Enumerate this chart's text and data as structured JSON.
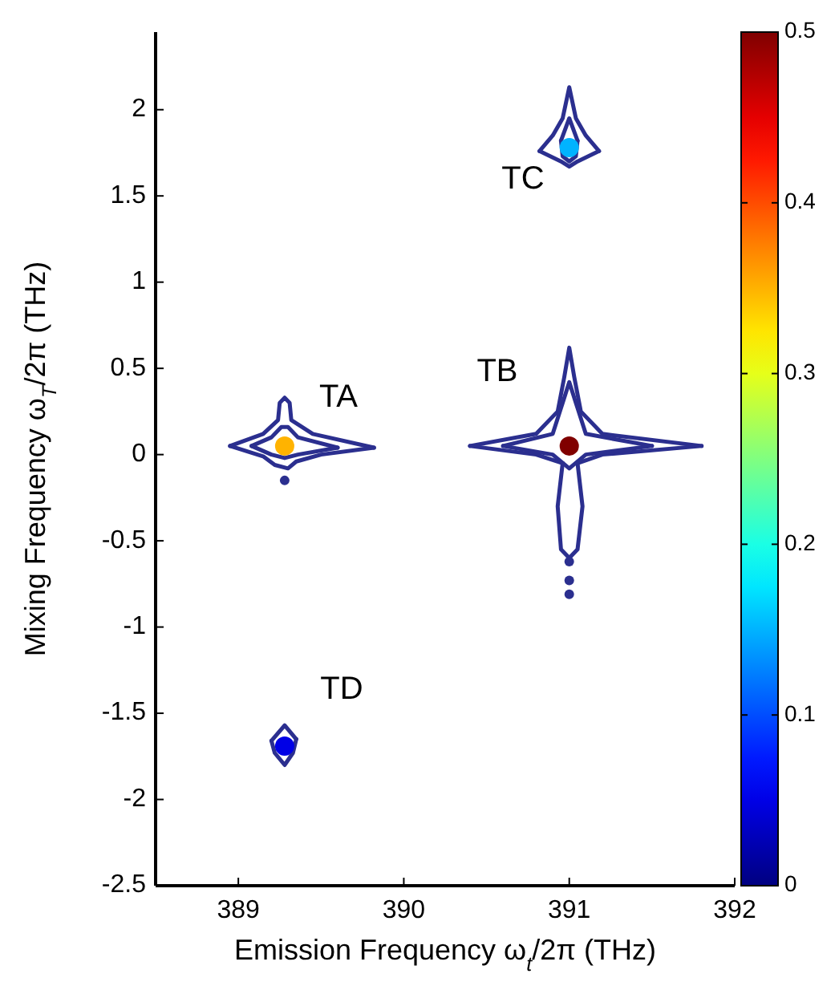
{
  "chart_data": {
    "type": "line",
    "xlabel": "Emission Frequency ω$_{t}$/2π (THz)",
    "ylabel": "Mixing Frequency ω$_{T}$/2π (THz)",
    "xlim": [
      388.5,
      392
    ],
    "xticks": [
      389,
      390,
      391,
      392
    ],
    "ylim": [
      -2.5,
      2.45
    ],
    "yticks": [
      -2.5,
      -2,
      -1.5,
      -1,
      -0.5,
      0,
      0.5,
      1,
      1.5,
      2
    ],
    "clim": [
      0,
      0.5
    ],
    "cticks": [
      0,
      0.1,
      0.2,
      0.3,
      0.4,
      0.5
    ],
    "grid": false,
    "series": [
      {
        "color": "#2b2f8f",
        "x": [
          388.95,
          389.15,
          389.24,
          389.25,
          389.28,
          389.31,
          389.32,
          389.45,
          389.82
        ],
        "values": [
          0.05,
          0.12,
          0.2,
          0.3,
          0.33,
          0.3,
          0.2,
          0.12,
          0.04
        ]
      },
      {
        "color": "#2b2f8f",
        "x": [
          388.95,
          389.15,
          389.22,
          389.3,
          389.35,
          389.5,
          389.82
        ],
        "values": [
          0.05,
          -0.01,
          -0.06,
          -0.08,
          -0.04,
          0.0,
          0.04
        ]
      },
      {
        "color": "#2b2f8f",
        "x": [
          389.08,
          389.2,
          389.26,
          389.3,
          389.36,
          389.6
        ],
        "values": [
          0.05,
          0.1,
          0.16,
          0.16,
          0.1,
          0.04
        ]
      },
      {
        "color": "#2b2f8f",
        "x": [
          389.08,
          389.2,
          389.28,
          389.36,
          389.6
        ],
        "values": [
          0.05,
          0.0,
          -0.02,
          0.0,
          0.04
        ]
      },
      {
        "color": "#2b2f8f",
        "x": [
          390.4,
          390.8,
          390.93,
          390.97,
          391.0,
          391.03,
          391.07,
          391.2,
          391.8
        ],
        "values": [
          0.05,
          0.12,
          0.25,
          0.45,
          0.62,
          0.45,
          0.25,
          0.12,
          0.05
        ]
      },
      {
        "color": "#2b2f8f",
        "x": [
          390.4,
          390.8,
          390.96
        ],
        "values": [
          0.05,
          0.0,
          -0.05
        ]
      },
      {
        "color": "#2b2f8f",
        "x": [
          390.96,
          390.93,
          390.95,
          391.0,
          391.05,
          391.08,
          391.05
        ],
        "values": [
          -0.05,
          -0.3,
          -0.55,
          -0.6,
          -0.55,
          -0.3,
          -0.05
        ]
      },
      {
        "color": "#2b2f8f",
        "x": [
          391.05,
          391.2,
          391.8
        ],
        "values": [
          -0.05,
          0.0,
          0.05
        ]
      },
      {
        "color": "#2b2f8f",
        "x": [
          390.6,
          390.9,
          390.96,
          391.0,
          391.04,
          391.1,
          391.5
        ],
        "values": [
          0.05,
          0.12,
          0.3,
          0.42,
          0.3,
          0.12,
          0.05
        ]
      },
      {
        "color": "#2b2f8f",
        "x": [
          390.6,
          390.9,
          391.0,
          391.1,
          391.5
        ],
        "values": [
          0.05,
          0.0,
          -0.08,
          0.0,
          0.05
        ]
      },
      {
        "color": "#2b2f8f",
        "x": [
          390.82,
          390.9,
          390.96,
          391.0,
          391.04,
          391.1,
          391.18
        ],
        "values": [
          1.76,
          1.85,
          1.95,
          2.13,
          1.95,
          1.85,
          1.76
        ]
      },
      {
        "color": "#2b2f8f",
        "x": [
          390.82,
          390.95,
          391.0,
          391.05,
          391.18
        ],
        "values": [
          1.76,
          1.7,
          1.67,
          1.7,
          1.76
        ]
      },
      {
        "color": "#2b2f8f",
        "x": [
          390.95,
          391.0,
          391.05
        ],
        "values": [
          1.82,
          1.95,
          1.82
        ]
      },
      {
        "color": "#2b2f8f",
        "x": [
          390.95,
          390.96,
          391.0,
          391.04,
          391.05
        ],
        "values": [
          1.82,
          1.73,
          1.7,
          1.73,
          1.82
        ]
      },
      {
        "color": "#2b2f8f",
        "x": [
          389.2,
          389.28,
          389.35
        ],
        "values": [
          -1.66,
          -1.57,
          -1.65
        ]
      },
      {
        "color": "#2b2f8f",
        "x": [
          389.2,
          389.22,
          389.28,
          389.33,
          389.35
        ],
        "values": [
          -1.66,
          -1.73,
          -1.8,
          -1.73,
          -1.65
        ]
      },
      {
        "type": "scatter",
        "marker": "circle",
        "x": [
          389.28,
          391.0,
          391.0,
          389.28
        ],
        "values": [
          0.05,
          0.05,
          1.78,
          -1.69
        ],
        "colors": [
          "#ffb300",
          "#800000",
          "#00b3ff",
          "#0000e6"
        ]
      },
      {
        "type": "scatter",
        "marker": "circle",
        "color": "#2b2f8f",
        "x": [
          389.28,
          391.0,
          391.0,
          391.0
        ],
        "values": [
          -0.15,
          -0.62,
          -0.73,
          -0.81
        ]
      }
    ],
    "annotations": [
      "TA",
      "TB",
      "TC",
      "TD"
    ]
  }
}
